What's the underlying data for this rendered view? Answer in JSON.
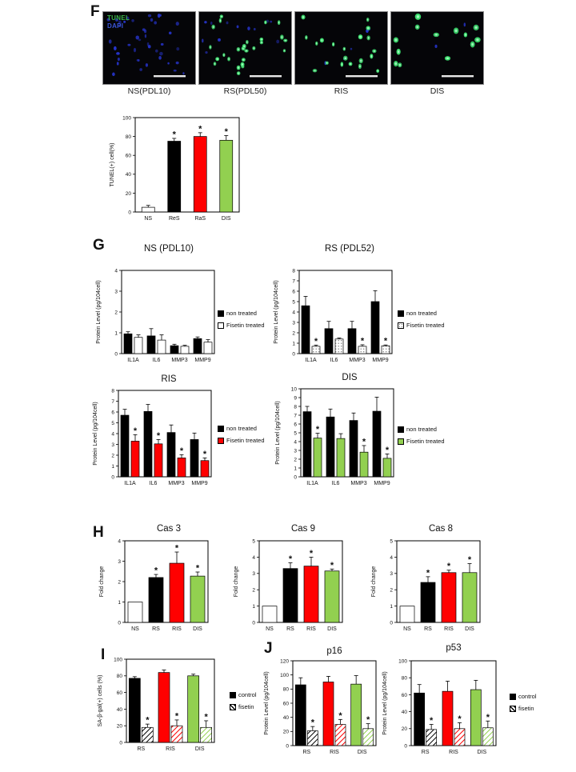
{
  "page": {
    "background": "#ffffff"
  },
  "panels": {
    "F": {
      "letter": "F",
      "overlay": {
        "tunel": "TUNEL",
        "dapi": "DAPI",
        "tunel_color": "#3db54a",
        "dapi_color": "#3a55d8"
      },
      "dot_colors": {
        "tunel": "#3ce06e",
        "dapi": "#2735cf"
      },
      "images": [
        {
          "label": "NS(PDL10)",
          "tunel_dots": 0,
          "dapi_dots": 42,
          "seed": 11,
          "dot_scale": 1.0
        },
        {
          "label": "RS(PDL50)",
          "tunel_dots": 26,
          "dapi_dots": 12,
          "seed": 22,
          "dot_scale": 1.0
        },
        {
          "label": "RIS",
          "tunel_dots": 20,
          "dapi_dots": 5,
          "seed": 33,
          "dot_scale": 1.0
        },
        {
          "label": "DIS",
          "tunel_dots": 13,
          "dapi_dots": 2,
          "seed": 44,
          "dot_scale": 1.35
        }
      ]
    },
    "G": {
      "letter": "G"
    },
    "H": {
      "letter": "H"
    },
    "I": {
      "letter": "I"
    },
    "J": {
      "letter": "J"
    }
  },
  "chart_data": [
    {
      "id": "tunel",
      "type": "bar",
      "title": "",
      "ylabel": "TUNEL(+) cell(%)",
      "ylim": [
        0,
        100
      ],
      "ytick": 20,
      "categories": [
        "NS",
        "ReS",
        "RaS",
        "DIS"
      ],
      "series": [
        {
          "name": "",
          "fill": "solid",
          "colors": [
            "#ffffff",
            "#000000",
            "#ff0000",
            "#92d050"
          ],
          "values": [
            5,
            75,
            80,
            76
          ],
          "errors": [
            2,
            3,
            4,
            5
          ],
          "asterisks": [
            0,
            1,
            1,
            1
          ]
        }
      ]
    },
    {
      "id": "g_ns",
      "type": "bar",
      "title": "NS (PDL10)",
      "ylabel": "Protein Level (pg/104cell)",
      "ylim": [
        0,
        4
      ],
      "ytick": 1,
      "categories": [
        "IL1A",
        "IL6",
        "MMP3",
        "MMP9"
      ],
      "series": [
        {
          "name": "non treated",
          "fill": "solid",
          "color": "#000000",
          "values": [
            0.95,
            0.85,
            0.38,
            0.72
          ],
          "errors": [
            0.1,
            0.35,
            0.07,
            0.08
          ],
          "asterisks": [
            0,
            0,
            0,
            0
          ]
        },
        {
          "name": "Fisetin treated",
          "fill": "solid",
          "color": "#ffffff",
          "values": [
            0.78,
            0.65,
            0.35,
            0.55
          ],
          "errors": [
            0.12,
            0.25,
            0.05,
            0.12
          ],
          "asterisks": [
            0,
            0,
            0,
            0
          ]
        }
      ]
    },
    {
      "id": "g_rs",
      "type": "bar",
      "title": "RS (PDL52)",
      "ylabel": "Protein Level (pg/104cell)",
      "ylim": [
        0,
        8
      ],
      "ytick": 1,
      "categories": [
        "IL1A",
        "IL6",
        "MMP3",
        "MMP9"
      ],
      "series": [
        {
          "name": "non treated",
          "fill": "solid",
          "color": "#000000",
          "values": [
            4.6,
            2.4,
            2.4,
            5.0
          ],
          "errors": [
            0.9,
            0.7,
            0.7,
            1.05
          ],
          "asterisks": [
            0,
            0,
            0,
            0
          ]
        },
        {
          "name": "Fisetin treated",
          "fill": "dots",
          "color": "#ffffff",
          "values": [
            0.7,
            1.4,
            0.7,
            0.75
          ],
          "errors": [
            0.12,
            0.1,
            0.15,
            0.08
          ],
          "asterisks": [
            1,
            0,
            1,
            1
          ]
        }
      ]
    },
    {
      "id": "g_ris",
      "type": "bar",
      "title": "RIS",
      "ylabel": "Protein Level (pg/104cell)",
      "ylim": [
        0,
        8
      ],
      "ytick": 1,
      "categories": [
        "IL1A",
        "IL6",
        "MMP3",
        "MMP9"
      ],
      "series": [
        {
          "name": "non treated",
          "fill": "solid",
          "color": "#000000",
          "values": [
            5.7,
            6.05,
            4.1,
            3.45
          ],
          "errors": [
            0.55,
            0.65,
            0.7,
            0.6
          ],
          "asterisks": [
            0,
            0,
            0,
            0
          ]
        },
        {
          "name": "Fisetin treated",
          "fill": "solid",
          "color": "#ff0000",
          "values": [
            3.3,
            3.05,
            1.75,
            1.5
          ],
          "errors": [
            0.6,
            0.4,
            0.3,
            0.25
          ],
          "asterisks": [
            1,
            1,
            1,
            1
          ]
        }
      ]
    },
    {
      "id": "g_dis",
      "type": "bar",
      "title": "DIS",
      "ylabel": "Protein Level (pg/104cell)",
      "ylim": [
        0,
        10
      ],
      "ytick": 1,
      "categories": [
        "IL1A",
        "IL6",
        "MMP3",
        "MMP9"
      ],
      "series": [
        {
          "name": "non treated",
          "fill": "solid",
          "color": "#000000",
          "values": [
            7.4,
            6.8,
            6.4,
            7.45
          ],
          "errors": [
            0.6,
            0.9,
            0.85,
            1.6
          ],
          "asterisks": [
            0,
            0,
            0,
            0
          ]
        },
        {
          "name": "Fisetin treated",
          "fill": "solid",
          "color": "#92d050",
          "values": [
            4.4,
            4.35,
            2.8,
            2.1
          ],
          "errors": [
            0.55,
            0.55,
            0.75,
            0.5
          ],
          "asterisks": [
            1,
            0,
            1,
            1
          ]
        }
      ]
    },
    {
      "id": "cas3",
      "type": "bar",
      "title": "Cas 3",
      "ylabel": "Fold change",
      "ylim": [
        0,
        4
      ],
      "ytick": 1,
      "categories": [
        "NS",
        "RS",
        "RIS",
        "DIS"
      ],
      "series": [
        {
          "name": "",
          "fill": "solid",
          "colors": [
            "#ffffff",
            "#000000",
            "#ff0000",
            "#92d050"
          ],
          "values": [
            1.0,
            2.2,
            2.9,
            2.27
          ],
          "errors": [
            0,
            0.15,
            0.55,
            0.2
          ],
          "asterisks": [
            0,
            1,
            1,
            1
          ]
        }
      ]
    },
    {
      "id": "cas9",
      "type": "bar",
      "title": "Cas 9",
      "ylabel": "Fold change",
      "ylim": [
        0,
        5
      ],
      "ytick": 1,
      "categories": [
        "NS",
        "RS",
        "RIS",
        "DIS"
      ],
      "series": [
        {
          "name": "",
          "fill": "solid",
          "colors": [
            "#ffffff",
            "#000000",
            "#ff0000",
            "#92d050"
          ],
          "values": [
            1.0,
            3.3,
            3.45,
            3.15
          ],
          "errors": [
            0,
            0.35,
            0.55,
            0.12
          ],
          "asterisks": [
            0,
            1,
            1,
            1
          ]
        }
      ]
    },
    {
      "id": "cas8",
      "type": "bar",
      "title": "Cas 8",
      "ylabel": "Fold change",
      "ylim": [
        0,
        5
      ],
      "ytick": 1,
      "categories": [
        "NS",
        "RS",
        "RIS",
        "DIS"
      ],
      "series": [
        {
          "name": "",
          "fill": "solid",
          "colors": [
            "#ffffff",
            "#000000",
            "#ff0000",
            "#92d050"
          ],
          "values": [
            1.0,
            2.45,
            3.05,
            3.05
          ],
          "errors": [
            0,
            0.35,
            0.15,
            0.55
          ],
          "asterisks": [
            0,
            1,
            1,
            1
          ]
        }
      ]
    },
    {
      "id": "sabgal",
      "type": "bar",
      "title": "",
      "ylabel": "SA-β-gal(+) cells (%)",
      "ylim": [
        0,
        100
      ],
      "ytick": 20,
      "categories": [
        "RS",
        "RIS",
        "DIS"
      ],
      "series": [
        {
          "name": "control",
          "fill": "solid",
          "legend_color": "#000000",
          "colors": [
            "#000000",
            "#ff0000",
            "#92d050"
          ],
          "values": [
            77,
            84,
            80
          ],
          "errors": [
            2,
            3,
            2
          ],
          "asterisks": [
            0,
            0,
            0
          ]
        },
        {
          "name": "fisetin",
          "fill": "hatch",
          "legend_color": "#000000",
          "colors": [
            "#000000",
            "#ff0000",
            "#92d050"
          ],
          "values": [
            18,
            20,
            18
          ],
          "errors": [
            4,
            7,
            8
          ],
          "asterisks": [
            1,
            1,
            1
          ]
        }
      ]
    },
    {
      "id": "p16",
      "type": "bar",
      "title": "p16",
      "ylabel": "Protein Level (pg/104cell)",
      "ylim": [
        0,
        120
      ],
      "ytick": 20,
      "categories": [
        "RS",
        "RIS",
        "DIS"
      ],
      "series": [
        {
          "name": "control",
          "fill": "solid",
          "legend_color": "#000000",
          "colors": [
            "#000000",
            "#ff0000",
            "#92d050"
          ],
          "values": [
            86,
            90,
            87
          ],
          "errors": [
            10,
            8,
            12
          ],
          "asterisks": [
            0,
            0,
            0
          ]
        },
        {
          "name": "fisetin",
          "fill": "hatch",
          "legend_color": "#000000",
          "colors": [
            "#000000",
            "#ff0000",
            "#92d050"
          ],
          "values": [
            21,
            30,
            24
          ],
          "errors": [
            6,
            7,
            7
          ],
          "asterisks": [
            1,
            1,
            1
          ]
        }
      ]
    },
    {
      "id": "p53",
      "type": "bar",
      "title": "p53",
      "ylabel": "Protein Level (pg/104cell)",
      "ylim": [
        0,
        100
      ],
      "ytick": 20,
      "categories": [
        "RS",
        "RIS",
        "DIS"
      ],
      "series": [
        {
          "name": "control",
          "fill": "solid",
          "legend_color": "#000000",
          "colors": [
            "#000000",
            "#ff0000",
            "#92d050"
          ],
          "values": [
            62,
            64,
            66
          ],
          "errors": [
            10,
            12,
            11
          ],
          "asterisks": [
            0,
            0,
            0
          ]
        },
        {
          "name": "fisetin",
          "fill": "hatch",
          "legend_color": "#000000",
          "colors": [
            "#000000",
            "#ff0000",
            "#92d050"
          ],
          "values": [
            19,
            20,
            21
          ],
          "errors": [
            6,
            7,
            8
          ],
          "asterisks": [
            1,
            1,
            1
          ]
        }
      ]
    }
  ]
}
